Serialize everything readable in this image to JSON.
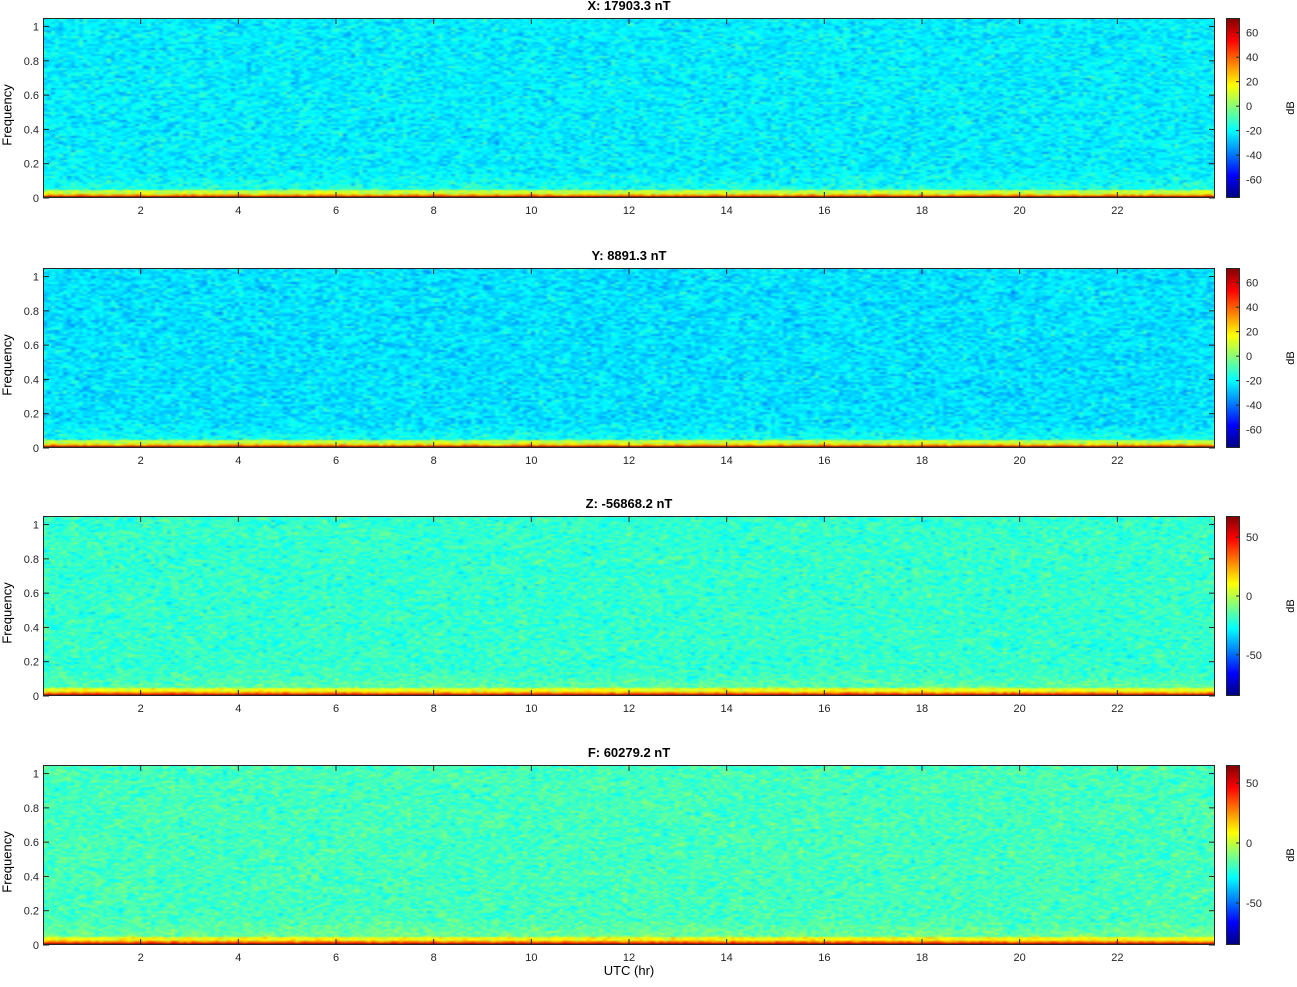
{
  "chart_data": [
    {
      "type": "heatmap",
      "title": "X: 17903.3 nT",
      "ylabel": "Frequency",
      "xlabel": "",
      "xlim": [
        0,
        24
      ],
      "ylim": [
        0,
        1.05
      ],
      "xticks": [
        2,
        4,
        6,
        8,
        10,
        12,
        14,
        16,
        18,
        20,
        22
      ],
      "yticks": [
        0,
        0.2,
        0.4,
        0.6,
        0.8,
        1
      ],
      "colorbar": {
        "label": "dB",
        "range": [
          -75,
          72
        ],
        "ticks": [
          -60,
          -40,
          -20,
          0,
          20,
          40,
          60
        ]
      },
      "colormap": "jet",
      "background_level_db": -22,
      "low_freq_level_db": 70
    },
    {
      "type": "heatmap",
      "title": "Y: 8891.3 nT",
      "ylabel": "Frequency",
      "xlabel": "",
      "xlim": [
        0,
        24
      ],
      "ylim": [
        0,
        1.05
      ],
      "xticks": [
        2,
        4,
        6,
        8,
        10,
        12,
        14,
        16,
        18,
        20,
        22
      ],
      "yticks": [
        0,
        0.2,
        0.4,
        0.6,
        0.8,
        1
      ],
      "colorbar": {
        "label": "dB",
        "range": [
          -75,
          72
        ],
        "ticks": [
          -60,
          -40,
          -20,
          0,
          20,
          40,
          60
        ]
      },
      "colormap": "jet",
      "background_level_db": -24,
      "low_freq_level_db": 70
    },
    {
      "type": "heatmap",
      "title": "Z: -56868.2 nT",
      "ylabel": "Frequency",
      "xlabel": "",
      "xlim": [
        0,
        24
      ],
      "ylim": [
        0,
        1.05
      ],
      "xticks": [
        2,
        4,
        6,
        8,
        10,
        12,
        14,
        16,
        18,
        20,
        22
      ],
      "yticks": [
        0,
        0.2,
        0.4,
        0.6,
        0.8,
        1
      ],
      "colorbar": {
        "label": "dB",
        "range": [
          -85,
          68
        ],
        "ticks": [
          -50,
          0,
          50
        ]
      },
      "colormap": "jet",
      "background_level_db": -20,
      "low_freq_level_db": 62
    },
    {
      "type": "heatmap",
      "title": "F: 60279.2 nT",
      "ylabel": "Frequency",
      "xlabel": "UTC (hr)",
      "xlim": [
        0,
        24
      ],
      "ylim": [
        0,
        1.05
      ],
      "xticks": [
        2,
        4,
        6,
        8,
        10,
        12,
        14,
        16,
        18,
        20,
        22
      ],
      "yticks": [
        0,
        0.2,
        0.4,
        0.6,
        0.8,
        1
      ],
      "colorbar": {
        "label": "dB",
        "range": [
          -85,
          65
        ],
        "ticks": [
          -50,
          0,
          50
        ]
      },
      "colormap": "jet",
      "background_level_db": -19,
      "low_freq_level_db": 60
    }
  ],
  "xaxis_label": "UTC (hr)"
}
